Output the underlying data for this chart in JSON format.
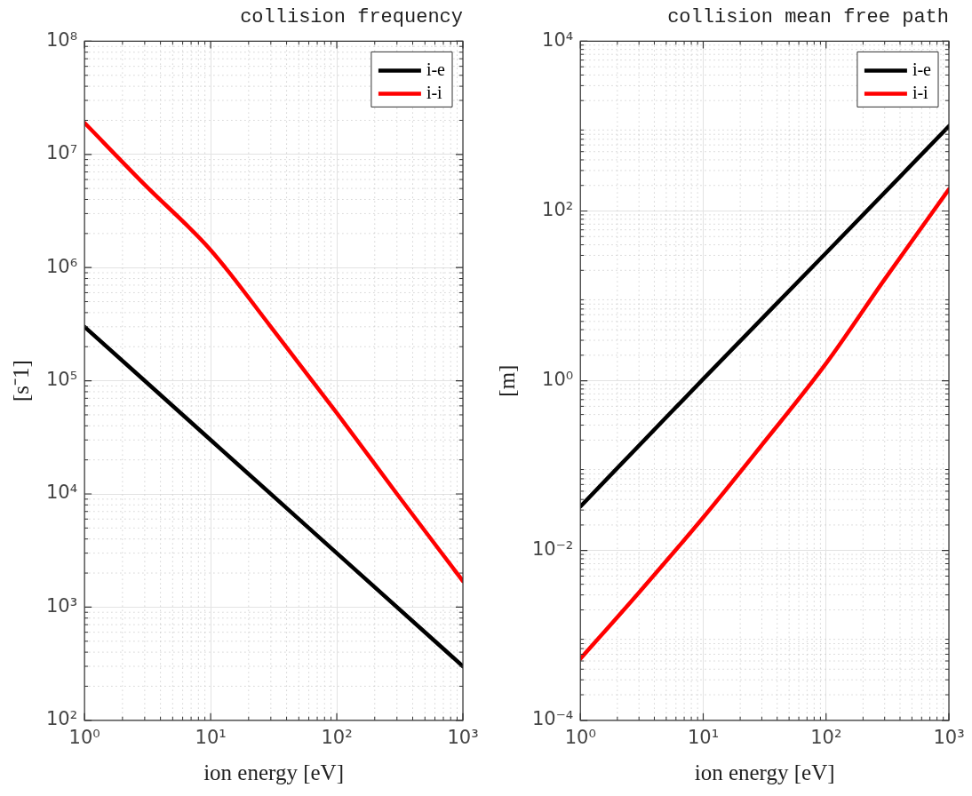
{
  "chart_data": [
    {
      "type": "line",
      "title": "collision frequency",
      "xlabel": "ion energy [eV]",
      "ylabel": "[s⁻1]",
      "log": "xy",
      "grid": true,
      "legend": "top right",
      "marker": "none",
      "line_style": "solid",
      "xlim": [
        1,
        1000
      ],
      "xticks": [
        {
          "value": 1,
          "label": "10⁰"
        },
        {
          "value": 10,
          "label": "10¹"
        },
        {
          "value": 100,
          "label": "10²"
        },
        {
          "value": 1000,
          "label": "10³"
        }
      ],
      "ylim": [
        100,
        100000000
      ],
      "yticks": [
        {
          "value": 100,
          "label": "10²"
        },
        {
          "value": 1000,
          "label": "10³"
        },
        {
          "value": 10000,
          "label": "10⁴"
        },
        {
          "value": 100000,
          "label": "10⁵"
        },
        {
          "value": 1000000,
          "label": "10⁶"
        },
        {
          "value": 10000000,
          "label": "10⁷"
        },
        {
          "value": 100000000,
          "label": "10⁸"
        }
      ],
      "series": [
        {
          "name": "i-e",
          "color": "#000000",
          "x": [
            1,
            10,
            100,
            1000
          ],
          "values": [
            300000,
            30000,
            3000,
            300
          ]
        },
        {
          "name": "i-i",
          "color": "#ff0000",
          "x": [
            1,
            3,
            10,
            30,
            100,
            300,
            1000
          ],
          "values": [
            19000000,
            5400000,
            1430000,
            300000,
            52000,
            10000,
            1700
          ]
        }
      ]
    },
    {
      "type": "line",
      "title": "collision mean free path",
      "xlabel": "ion energy [eV]",
      "ylabel": "[m]",
      "log": "xy",
      "grid": true,
      "legend": "top right",
      "marker": "none",
      "line_style": "solid",
      "xlim": [
        1,
        1000
      ],
      "xticks": [
        {
          "value": 1,
          "label": "10⁰"
        },
        {
          "value": 10,
          "label": "10¹"
        },
        {
          "value": 100,
          "label": "10²"
        },
        {
          "value": 1000,
          "label": "10³"
        }
      ],
      "ylim": [
        0.0001,
        10000
      ],
      "yticks": [
        {
          "value": 0.0001,
          "label": "10⁻⁴"
        },
        {
          "value": 0.01,
          "label": "10⁻²"
        },
        {
          "value": 1,
          "label": "10⁰"
        },
        {
          "value": 100,
          "label": "10²"
        },
        {
          "value": 10000,
          "label": "10⁴"
        }
      ],
      "series": [
        {
          "name": "i-e",
          "color": "#000000",
          "x": [
            1,
            10,
            100,
            1000
          ],
          "values": [
            0.033,
            1.05,
            32,
            1000
          ]
        },
        {
          "name": "i-i",
          "color": "#ff0000",
          "x": [
            1,
            3,
            10,
            30,
            100,
            300,
            1000
          ],
          "values": [
            0.00053,
            0.0032,
            0.0245,
            0.175,
            1.6,
            15.7,
            180
          ]
        }
      ]
    }
  ]
}
